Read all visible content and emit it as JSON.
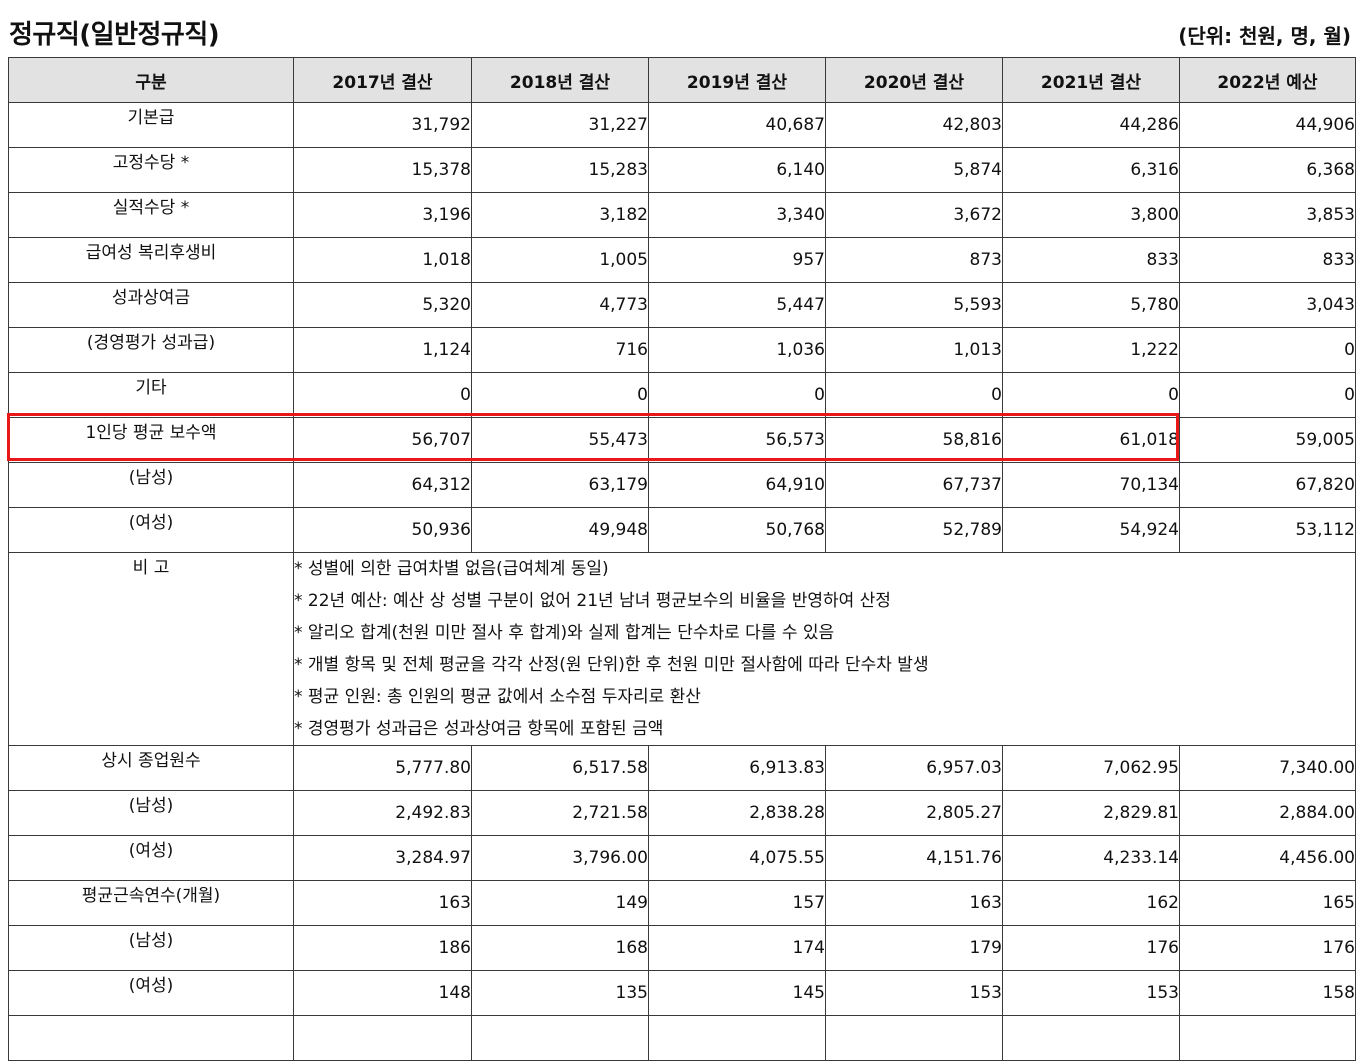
{
  "header": {
    "title": "정규직(일반정규직)",
    "unit": "(단위: 천원, 명, 월)"
  },
  "table": {
    "columns": [
      "구분",
      "2017년 결산",
      "2018년 결산",
      "2019년 결산",
      "2020년 결산",
      "2021년 결산",
      "2022년 예산"
    ],
    "rows": [
      {
        "label": "기본급",
        "values": [
          "31,792",
          "31,227",
          "40,687",
          "42,803",
          "44,286",
          "44,906"
        ]
      },
      {
        "label": "고정수당 *",
        "values": [
          "15,378",
          "15,283",
          "6,140",
          "5,874",
          "6,316",
          "6,368"
        ]
      },
      {
        "label": "실적수당 *",
        "values": [
          "3,196",
          "3,182",
          "3,340",
          "3,672",
          "3,800",
          "3,853"
        ]
      },
      {
        "label": "급여성 복리후생비",
        "values": [
          "1,018",
          "1,005",
          "957",
          "873",
          "833",
          "833"
        ]
      },
      {
        "label": "성과상여금",
        "values": [
          "5,320",
          "4,773",
          "5,447",
          "5,593",
          "5,780",
          "3,043"
        ]
      },
      {
        "label": "(경영평가 성과급)",
        "values": [
          "1,124",
          "716",
          "1,036",
          "1,013",
          "1,222",
          "0"
        ]
      },
      {
        "label": "기타",
        "values": [
          "0",
          "0",
          "0",
          "0",
          "0",
          "0"
        ]
      },
      {
        "label": "1인당 평균 보수액",
        "values": [
          "56,707",
          "55,473",
          "56,573",
          "58,816",
          "61,018",
          "59,005"
        ]
      },
      {
        "label": "(남성)",
        "values": [
          "64,312",
          "63,179",
          "64,910",
          "67,737",
          "70,134",
          "67,820"
        ]
      },
      {
        "label": "(여성)",
        "values": [
          "50,936",
          "49,948",
          "50,768",
          "52,789",
          "54,924",
          "53,112"
        ]
      }
    ],
    "notes": {
      "label": "비 고",
      "lines": [
        "* 성별에 의한 급여차별 없음(급여체계 동일)",
        "* 22년 예산: 예산 상 성별 구분이 없어 21년 남녀 평균보수의 비율을 반영하여 산정",
        "* 알리오 합계(천원 미만 절사 후 합계)와 실제 합계는 단수차로 다를 수 있음",
        "* 개별 항목 및 전체 평균을 각각 산정(원 단위)한 후 천원 미만 절사함에 따라 단수차 발생",
        "* 평균 인원: 총 인원의 평균 값에서 소수점 두자리로 환산",
        "* 경영평가 성과급은 성과상여금 항목에 포함된 금액"
      ]
    },
    "rows2": [
      {
        "label": "상시 종업원수",
        "values": [
          "5,777.80",
          "6,517.58",
          "6,913.83",
          "6,957.03",
          "7,062.95",
          "7,340.00"
        ]
      },
      {
        "label": "(남성)",
        "values": [
          "2,492.83",
          "2,721.58",
          "2,838.28",
          "2,805.27",
          "2,829.81",
          "2,884.00"
        ]
      },
      {
        "label": "(여성)",
        "values": [
          "3,284.97",
          "3,796.00",
          "4,075.55",
          "4,151.76",
          "4,233.14",
          "4,456.00"
        ]
      },
      {
        "label": "평균근속연수(개월)",
        "values": [
          "163",
          "149",
          "157",
          "163",
          "162",
          "165"
        ]
      },
      {
        "label": "(남성)",
        "values": [
          "186",
          "168",
          "174",
          "179",
          "176",
          "176"
        ]
      },
      {
        "label": "(여성)",
        "values": [
          "148",
          "135",
          "145",
          "153",
          "153",
          "158"
        ]
      }
    ]
  },
  "colors": {
    "header_bg": "#e2e2e2",
    "border": "#3a3a3a",
    "highlight": "#e81818"
  }
}
